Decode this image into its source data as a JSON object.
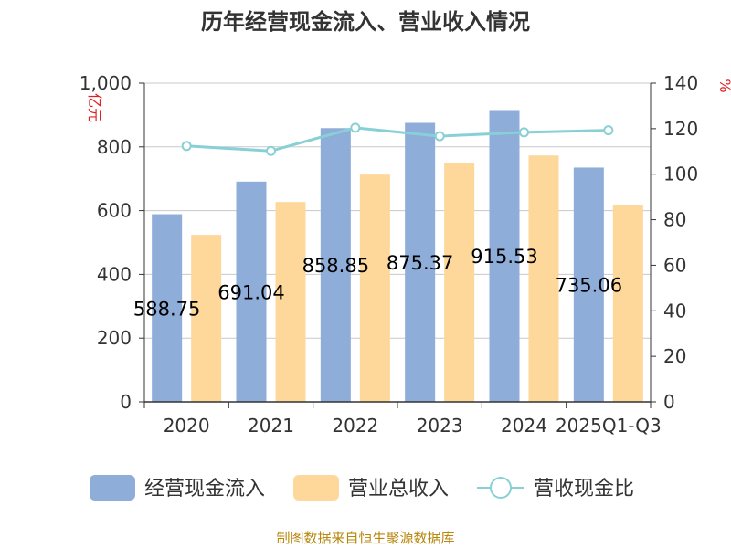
{
  "chart_data": {
    "type": "bar",
    "title": "历年经营现金流入、营业收入情况",
    "categories": [
      "2020",
      "2021",
      "2022",
      "2023",
      "2024",
      "2025Q1-Q3"
    ],
    "series": [
      {
        "name": "经营现金流入",
        "type": "bar",
        "axis": "left",
        "color": "#8eadd9",
        "values": [
          588.75,
          691.04,
          858.85,
          875.37,
          915.53,
          735.06
        ]
      },
      {
        "name": "营业总收入",
        "type": "bar",
        "axis": "left",
        "color": "#fdd89a",
        "values": [
          524,
          627,
          713,
          750,
          773,
          616
        ]
      },
      {
        "name": "营收现金比",
        "type": "line",
        "axis": "right",
        "color": "#88d0d6",
        "values": [
          112.4,
          110.2,
          120.4,
          116.7,
          118.4,
          119.3
        ]
      }
    ],
    "data_labels": [
      "588.75",
      "691.04",
      "858.85",
      "875.37",
      "915.53",
      "735.06"
    ],
    "y_left": {
      "unit": "亿元",
      "min": 0,
      "max": 1000,
      "ticks": [
        "0",
        "200",
        "400",
        "600",
        "800",
        "1,000"
      ]
    },
    "y_right": {
      "unit": "%",
      "min": 0,
      "max": 140,
      "ticks": [
        "0",
        "20",
        "40",
        "60",
        "80",
        "100",
        "120",
        "140"
      ]
    },
    "grid": true,
    "legend_position": "bottom",
    "source": "制图数据来自恒生聚源数据库"
  }
}
